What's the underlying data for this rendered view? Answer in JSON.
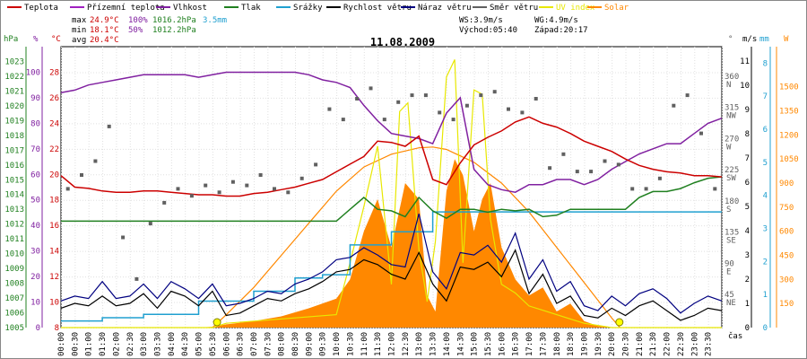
{
  "chart_data": {
    "type": "line",
    "title": "11.08.2009",
    "legend": [
      {
        "label": "Teplota",
        "color": "#cc0000"
      },
      {
        "label": "Přízemní teplota",
        "color": "#a020c0"
      },
      {
        "label": "Vlhkost",
        "color": "#8020a0"
      },
      {
        "label": "Tlak",
        "color": "#208020"
      },
      {
        "label": "Srážky",
        "color": "#20a0d0"
      },
      {
        "label": "Rychlost větru",
        "color": "#000000"
      },
      {
        "label": "Náraz větru",
        "color": "#000080"
      },
      {
        "label": "Směr větru",
        "color": "#606060"
      },
      {
        "label": "UV index",
        "color": "#e8e800"
      },
      {
        "label": "Solar",
        "color": "#ff8800"
      }
    ],
    "stats": {
      "max_label": "max",
      "min_label": "min",
      "avg_label": "avg",
      "max_temp": "24.9°C",
      "max_hum": "100%",
      "max_press": "1016.2hPa",
      "max_rain": "3.5mm",
      "min_temp": "18.1°C",
      "min_hum": "50%",
      "min_press": "1012.2hPa",
      "avg_temp": "20.4°C",
      "ws": "WS:3.9m/s",
      "wg": "WG:4.9m/s",
      "sunrise": "Východ:05:40",
      "sunset": "Západ:20:17"
    },
    "axis_units": {
      "hpa": "hPa",
      "pct": "%",
      "degc": "°C",
      "ms": "m/s",
      "mm": "mm",
      "w": "W",
      "deg": "°",
      "time": "čas"
    },
    "pressure_ticks": [
      "1005",
      "1006",
      "1007",
      "1008",
      "1009",
      "1010",
      "1011",
      "1012",
      "1013",
      "1014",
      "1015",
      "1016",
      "1017",
      "1018",
      "1019",
      "1020",
      "1021",
      "1022",
      "1023"
    ],
    "humidity_ticks": [
      "0",
      "10",
      "20",
      "30",
      "40",
      "50",
      "60",
      "70",
      "80",
      "90",
      "100"
    ],
    "temp_ticks": [
      "8",
      "10",
      "12",
      "14",
      "16",
      "18",
      "20",
      "22",
      "24",
      "26",
      "28"
    ],
    "direction_ticks": [
      {
        "deg": "360",
        "dir": "N"
      },
      {
        "deg": "315",
        "dir": "NW"
      },
      {
        "deg": "270",
        "dir": "W"
      },
      {
        "deg": "225",
        "dir": "SW"
      },
      {
        "deg": "180",
        "dir": "S"
      },
      {
        "deg": "135",
        "dir": "SE"
      },
      {
        "deg": "90",
        "dir": "E"
      },
      {
        "deg": "45",
        "dir": "NE"
      }
    ],
    "wind_ticks": [
      "0",
      "1",
      "2",
      "3",
      "4",
      "5",
      "6",
      "7",
      "8",
      "9",
      "10",
      "11"
    ],
    "rain_ticks": [
      "0",
      "1",
      "2",
      "3",
      "4",
      "5",
      "6",
      "7",
      "8"
    ],
    "solar_ticks": [
      "150",
      "300",
      "450",
      "600",
      "750",
      "900",
      "1050",
      "1200",
      "1350",
      "1500"
    ],
    "x_ticks": [
      "00:00",
      "00:30",
      "01:00",
      "01:30",
      "02:00",
      "02:30",
      "03:00",
      "03:30",
      "04:00",
      "04:30",
      "05:00",
      "05:30",
      "06:00",
      "06:30",
      "07:00",
      "07:30",
      "08:00",
      "08:30",
      "09:00",
      "09:30",
      "10:00",
      "10:30",
      "11:00",
      "11:30",
      "12:00",
      "12:30",
      "13:00",
      "13:30",
      "14:00",
      "14:30",
      "15:00",
      "15:30",
      "16:00",
      "16:30",
      "17:00",
      "17:30",
      "18:00",
      "18:30",
      "19:00",
      "19:30",
      "20:00",
      "20:30",
      "21:00",
      "21:30",
      "22:00",
      "22:30",
      "23:00",
      "23:30"
    ],
    "temperature_c": {
      "x": [
        0,
        0.5,
        1,
        1.5,
        2,
        2.5,
        3,
        3.5,
        4,
        4.5,
        5,
        5.5,
        6,
        6.5,
        7,
        7.5,
        8,
        8.5,
        9,
        9.5,
        10,
        10.5,
        11,
        11.5,
        12,
        12.5,
        13,
        13.5,
        14,
        14.5,
        15,
        15.5,
        16,
        16.5,
        17,
        17.5,
        18,
        18.5,
        19,
        19.5,
        20,
        20.5,
        21,
        21.5,
        22,
        22.5,
        23,
        23.5,
        24
      ],
      "y": [
        19.9,
        19.0,
        18.9,
        18.7,
        18.6,
        18.6,
        18.7,
        18.7,
        18.6,
        18.5,
        18.4,
        18.4,
        18.3,
        18.3,
        18.5,
        18.6,
        18.8,
        19.0,
        19.3,
        19.6,
        20.2,
        20.8,
        21.4,
        22.6,
        22.5,
        22.2,
        23.0,
        19.6,
        19.2,
        20.9,
        22.3,
        22.9,
        23.4,
        24.1,
        24.5,
        24.0,
        23.7,
        23.2,
        22.6,
        22.2,
        21.8,
        21.2,
        20.7,
        20.4,
        20.2,
        20.1,
        19.9,
        19.9,
        19.8
      ]
    },
    "humidity_pct": {
      "x": [
        0,
        0.5,
        1,
        1.5,
        2,
        2.5,
        3,
        3.5,
        4,
        4.5,
        5,
        5.5,
        6,
        6.5,
        7,
        7.5,
        8,
        8.5,
        9,
        9.5,
        10,
        10.5,
        11,
        11.5,
        12,
        12.5,
        13,
        13.5,
        14,
        14.5,
        15,
        15.5,
        16,
        16.5,
        17,
        17.5,
        18,
        18.5,
        19,
        19.5,
        20,
        20.5,
        21,
        21.5,
        22,
        22.5,
        23,
        23.5,
        24
      ],
      "y": [
        92,
        93,
        95,
        96,
        97,
        98,
        99,
        99,
        99,
        99,
        98,
        99,
        100,
        100,
        100,
        100,
        100,
        100,
        99,
        97,
        96,
        94,
        87,
        81,
        76,
        75,
        74,
        72,
        84,
        90,
        62,
        56,
        54,
        53,
        56,
        56,
        58,
        58,
        56,
        58,
        62,
        65,
        68,
        70,
        72,
        72,
        76,
        80,
        82
      ]
    },
    "pressure_hpa": {
      "x": [
        0,
        0.5,
        1,
        1.5,
        2,
        2.5,
        3,
        3.5,
        4,
        4.5,
        5,
        5.5,
        6,
        6.5,
        7,
        7.5,
        8,
        8.5,
        9,
        9.5,
        10,
        10.5,
        11,
        11.5,
        12,
        12.5,
        13,
        13.5,
        14,
        14.5,
        15,
        15.5,
        16,
        16.5,
        17,
        17.5,
        18,
        18.5,
        19,
        19.5,
        20,
        20.5,
        21,
        21.5,
        22,
        22.5,
        23,
        23.5,
        24
      ],
      "y": [
        1012.2,
        1012.2,
        1012.2,
        1012.2,
        1012.2,
        1012.2,
        1012.2,
        1012.2,
        1012.2,
        1012.2,
        1012.2,
        1012.2,
        1012.2,
        1012.2,
        1012.2,
        1012.2,
        1012.2,
        1012.2,
        1012.2,
        1012.2,
        1012.2,
        1013.0,
        1013.8,
        1013.0,
        1012.9,
        1012.5,
        1013.8,
        1012.9,
        1012.4,
        1013.0,
        1013.0,
        1012.8,
        1013.0,
        1012.9,
        1013.0,
        1012.5,
        1012.6,
        1013.0,
        1013.0,
        1013.0,
        1013.0,
        1013.0,
        1013.8,
        1014.2,
        1014.2,
        1014.4,
        1014.8,
        1015.1,
        1015.2
      ]
    },
    "rain_mm": {
      "x": [
        0,
        1.5,
        3,
        5,
        7,
        8.5,
        9.5,
        10.5,
        12,
        13.5,
        16,
        20,
        24
      ],
      "y": [
        0.2,
        0.3,
        0.4,
        0.8,
        1.1,
        1.5,
        1.6,
        2.5,
        2.9,
        3.5,
        3.5,
        3.5,
        3.5
      ]
    },
    "wind_speed_ms": {
      "x": [
        0,
        0.5,
        1,
        1.5,
        2,
        2.5,
        3,
        3.5,
        4,
        4.5,
        5,
        5.5,
        6,
        6.5,
        7,
        7.5,
        8,
        8.5,
        9,
        9.5,
        10,
        10.5,
        11,
        11.5,
        12,
        12.5,
        13,
        13.5,
        14,
        14.5,
        15,
        15.5,
        16,
        16.5,
        17,
        17.5,
        18,
        18.5,
        19,
        19.5,
        20,
        20.5,
        21,
        21.5,
        22,
        22.5,
        23,
        23.5,
        24
      ],
      "y": [
        0.8,
        1.0,
        0.9,
        1.3,
        0.9,
        1.0,
        1.4,
        0.8,
        1.5,
        1.3,
        0.9,
        1.5,
        0.5,
        0.6,
        0.9,
        1.2,
        1.1,
        1.4,
        1.6,
        1.9,
        2.3,
        2.4,
        2.8,
        2.6,
        2.2,
        2.0,
        3.1,
        1.8,
        1.1,
        2.5,
        2.4,
        2.7,
        2.1,
        3.2,
        1.4,
        2.2,
        1.0,
        1.3,
        0.5,
        0.4,
        0.8,
        0.5,
        0.9,
        1.1,
        0.7,
        0.3,
        0.5,
        0.8,
        0.7
      ]
    },
    "wind_gust_ms": {
      "x": [
        0,
        0.5,
        1,
        1.5,
        2,
        2.5,
        3,
        3.5,
        4,
        4.5,
        5,
        5.5,
        6,
        6.5,
        7,
        7.5,
        8,
        8.5,
        9,
        9.5,
        10,
        10.5,
        11,
        11.5,
        12,
        12.5,
        13,
        13.5,
        14,
        14.5,
        15,
        15.5,
        16,
        16.5,
        17,
        17.5,
        18,
        18.5,
        19,
        19.5,
        20,
        20.5,
        21,
        21.5,
        22,
        22.5,
        23,
        23.5,
        24
      ],
      "y": [
        1.1,
        1.3,
        1.2,
        1.9,
        1.2,
        1.3,
        1.8,
        1.2,
        1.9,
        1.6,
        1.2,
        1.8,
        0.9,
        1.0,
        1.2,
        1.5,
        1.4,
        1.8,
        2.0,
        2.3,
        2.8,
        2.9,
        3.3,
        3.0,
        2.6,
        2.5,
        4.7,
        2.3,
        1.6,
        3.1,
        3.0,
        3.4,
        2.7,
        3.9,
        2.0,
        2.8,
        1.5,
        1.9,
        0.9,
        0.7,
        1.3,
        0.9,
        1.4,
        1.6,
        1.2,
        0.6,
        1.0,
        1.3,
        1.1
      ]
    },
    "wind_direction_deg": {
      "x": [
        0.25,
        0.75,
        1.25,
        1.75,
        2.25,
        2.75,
        3.25,
        3.75,
        4.25,
        4.75,
        5.25,
        5.75,
        6.25,
        6.75,
        7.25,
        7.75,
        8.25,
        8.75,
        9.25,
        9.75,
        10.25,
        10.75,
        11.25,
        11.75,
        12.25,
        12.75,
        13.25,
        13.75,
        14.25,
        14.75,
        15.25,
        15.75,
        16.25,
        16.75,
        17.25,
        17.75,
        18.25,
        18.75,
        19.25,
        19.75,
        20.25,
        20.75,
        21.25,
        21.75,
        22.25,
        22.75,
        23.25,
        23.75
      ],
      "y": [
        200,
        220,
        240,
        290,
        130,
        70,
        150,
        180,
        200,
        190,
        205,
        195,
        210,
        205,
        220,
        200,
        195,
        215,
        235,
        315,
        300,
        330,
        345,
        300,
        325,
        335,
        335,
        310,
        300,
        320,
        335,
        340,
        315,
        310,
        330,
        230,
        250,
        225,
        225,
        240,
        235,
        200,
        200,
        215,
        320,
        335,
        280,
        200
      ]
    },
    "uv_index": {
      "x": [
        0,
        5.5,
        6,
        10,
        10.5,
        11,
        11.5,
        12,
        12.3,
        12.6,
        13,
        13.3,
        13.6,
        14,
        14.3,
        14.6,
        15,
        15.3,
        15.6,
        16,
        16.5,
        17,
        17.5,
        18,
        18.5,
        19,
        20,
        24
      ],
      "y": [
        0,
        0,
        0.1,
        0.3,
        1.5,
        2.8,
        4.2,
        1.0,
        5.0,
        5.2,
        1.8,
        0.6,
        2.0,
        5.8,
        6.2,
        1.5,
        5.5,
        5.4,
        2.5,
        1.0,
        0.8,
        0.5,
        0.4,
        0.3,
        0.2,
        0.1,
        0,
        0
      ]
    },
    "solar_wm2": {
      "x": [
        0,
        5,
        5.5,
        6,
        7,
        8,
        9,
        10,
        10.5,
        11,
        11.5,
        12,
        12.5,
        13,
        13.3,
        13.6,
        14,
        14.3,
        14.6,
        15,
        15.3,
        15.6,
        16,
        16.5,
        17,
        17.5,
        18,
        18.5,
        19,
        19.5,
        20,
        24
      ],
      "y": [
        0,
        0,
        5,
        20,
        40,
        70,
        120,
        180,
        300,
        600,
        800,
        500,
        900,
        800,
        200,
        100,
        850,
        1050,
        950,
        600,
        800,
        900,
        500,
        300,
        200,
        250,
        100,
        150,
        40,
        10,
        0,
        0
      ]
    },
    "solar_clear_sky_wm2": {
      "x": [
        5.5,
        6,
        7,
        8,
        9,
        10,
        11,
        12,
        13,
        13.5,
        14,
        15,
        16,
        17,
        18,
        19,
        20,
        20.3
      ],
      "y": [
        0,
        80,
        250,
        450,
        650,
        850,
        1000,
        1080,
        1120,
        1125,
        1110,
        1030,
        900,
        720,
        500,
        280,
        60,
        0
      ]
    },
    "sun_markers": {
      "x": [
        5.67,
        20.28
      ]
    },
    "y_ranges": {
      "temp": [
        8,
        30
      ],
      "humidity": [
        0,
        110
      ],
      "pressure": [
        1005,
        1024
      ],
      "wind": [
        0,
        11.6
      ],
      "rain": [
        0,
        8.5
      ],
      "solar": [
        0,
        1750
      ],
      "direction": [
        0,
        405
      ]
    }
  }
}
